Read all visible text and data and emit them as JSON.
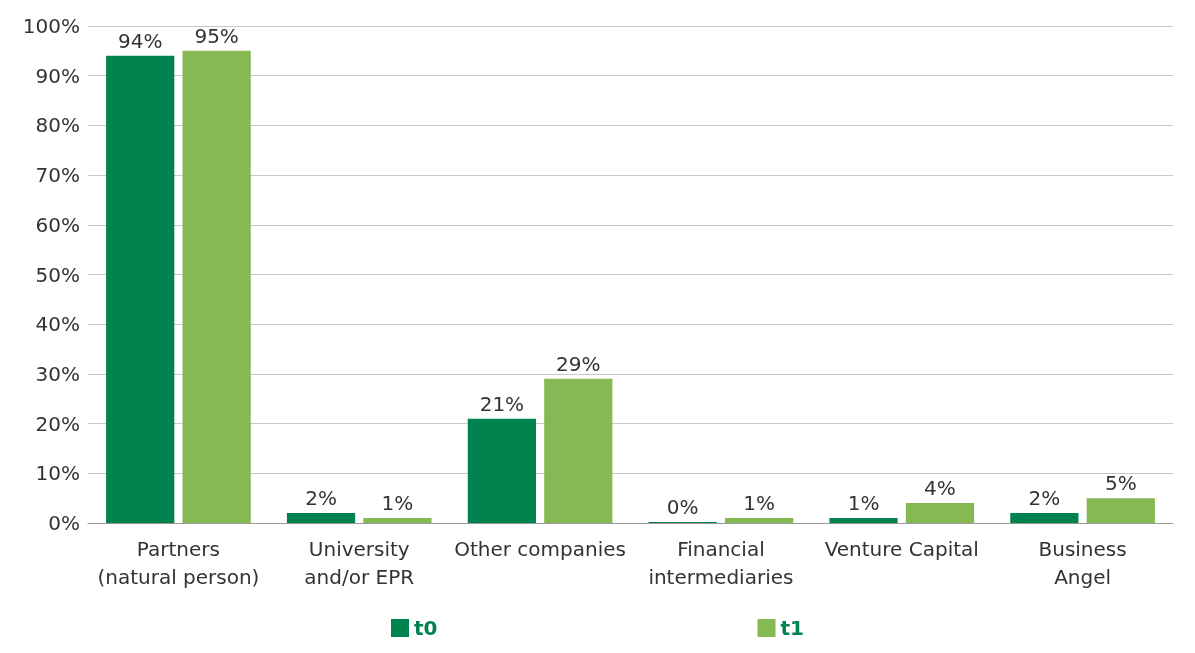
{
  "chart_data": {
    "type": "bar",
    "categories": [
      "Partners\n(natural person)",
      "University\nand/or EPR",
      "Other companies",
      "Financial\nintermediaries",
      "Venture Capital",
      "Business\nAngel"
    ],
    "series": [
      {
        "name": "t0",
        "color": "#00834f",
        "values": [
          94,
          2,
          21,
          0,
          1,
          2
        ],
        "value_labels": [
          "94%",
          "2%",
          "21%",
          "0%",
          "1%",
          "2%"
        ]
      },
      {
        "name": "t1",
        "color": "#86b853",
        "values": [
          95,
          1,
          29,
          1,
          4,
          5
        ],
        "value_labels": [
          "95%",
          "1%",
          "29%",
          "1%",
          "4%",
          "5%"
        ]
      }
    ],
    "ylim": [
      0,
      100
    ],
    "yticks": [
      {
        "value": 0,
        "label": "0%"
      },
      {
        "value": 10,
        "label": "10%"
      },
      {
        "value": 20,
        "label": "20%"
      },
      {
        "value": 30,
        "label": "30%"
      },
      {
        "value": 40,
        "label": "40%"
      },
      {
        "value": 50,
        "label": "50%"
      },
      {
        "value": 60,
        "label": "60%"
      },
      {
        "value": 70,
        "label": "70%"
      },
      {
        "value": 80,
        "label": "80%"
      },
      {
        "value": 90,
        "label": "90%"
      },
      {
        "value": 100,
        "label": "100%"
      }
    ],
    "grid": "y",
    "legend": "bottom"
  }
}
